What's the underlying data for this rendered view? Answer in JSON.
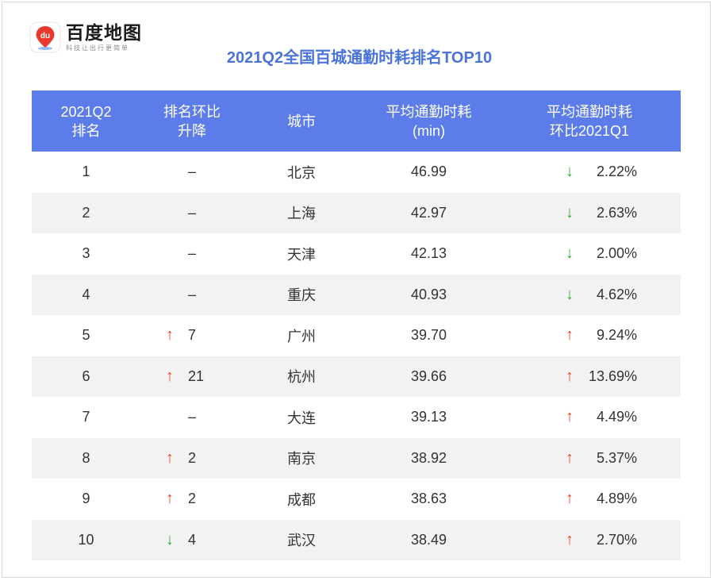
{
  "logo": {
    "badge_text": "du",
    "name": "百度地图",
    "slogan": "科技让出行更简单"
  },
  "title": "2021Q2全国百城通勤时耗排名TOP10",
  "colors": {
    "header_bg": "#5b7ce9",
    "title": "#4a73dc",
    "up": "#e8452c",
    "down": "#3aa93a",
    "stripe": "#f2f2f2"
  },
  "table": {
    "headers": [
      [
        "2021Q2",
        "排名"
      ],
      [
        "排名环比",
        "升降"
      ],
      [
        "城市"
      ],
      [
        "平均通勤时耗",
        "(min)"
      ],
      [
        "平均通勤时耗",
        "环比2021Q1"
      ]
    ],
    "rows": [
      {
        "rank": "1",
        "rank_change": {
          "dir": "none",
          "text": "–",
          "value": ""
        },
        "city": "北京",
        "time": "46.99",
        "pct": {
          "dir": "down",
          "value": "2.22%"
        }
      },
      {
        "rank": "2",
        "rank_change": {
          "dir": "none",
          "text": "–",
          "value": ""
        },
        "city": "上海",
        "time": "42.97",
        "pct": {
          "dir": "down",
          "value": "2.63%"
        }
      },
      {
        "rank": "3",
        "rank_change": {
          "dir": "none",
          "text": "–",
          "value": ""
        },
        "city": "天津",
        "time": "42.13",
        "pct": {
          "dir": "down",
          "value": "2.00%"
        }
      },
      {
        "rank": "4",
        "rank_change": {
          "dir": "none",
          "text": "–",
          "value": ""
        },
        "city": "重庆",
        "time": "40.93",
        "pct": {
          "dir": "down",
          "value": "4.62%"
        }
      },
      {
        "rank": "5",
        "rank_change": {
          "dir": "up",
          "text": "",
          "value": "7"
        },
        "city": "广州",
        "time": "39.70",
        "pct": {
          "dir": "up",
          "value": "9.24%"
        }
      },
      {
        "rank": "6",
        "rank_change": {
          "dir": "up",
          "text": "",
          "value": "21"
        },
        "city": "杭州",
        "time": "39.66",
        "pct": {
          "dir": "up",
          "value": "13.69%"
        }
      },
      {
        "rank": "7",
        "rank_change": {
          "dir": "none",
          "text": "–",
          "value": ""
        },
        "city": "大连",
        "time": "39.13",
        "pct": {
          "dir": "up",
          "value": "4.49%"
        }
      },
      {
        "rank": "8",
        "rank_change": {
          "dir": "up",
          "text": "",
          "value": "2"
        },
        "city": "南京",
        "time": "38.92",
        "pct": {
          "dir": "up",
          "value": "5.37%"
        }
      },
      {
        "rank": "9",
        "rank_change": {
          "dir": "up",
          "text": "",
          "value": "2"
        },
        "city": "成都",
        "time": "38.63",
        "pct": {
          "dir": "up",
          "value": "4.89%"
        }
      },
      {
        "rank": "10",
        "rank_change": {
          "dir": "down",
          "text": "",
          "value": "4"
        },
        "city": "武汉",
        "time": "38.49",
        "pct": {
          "dir": "up",
          "value": "2.70%"
        }
      }
    ]
  }
}
